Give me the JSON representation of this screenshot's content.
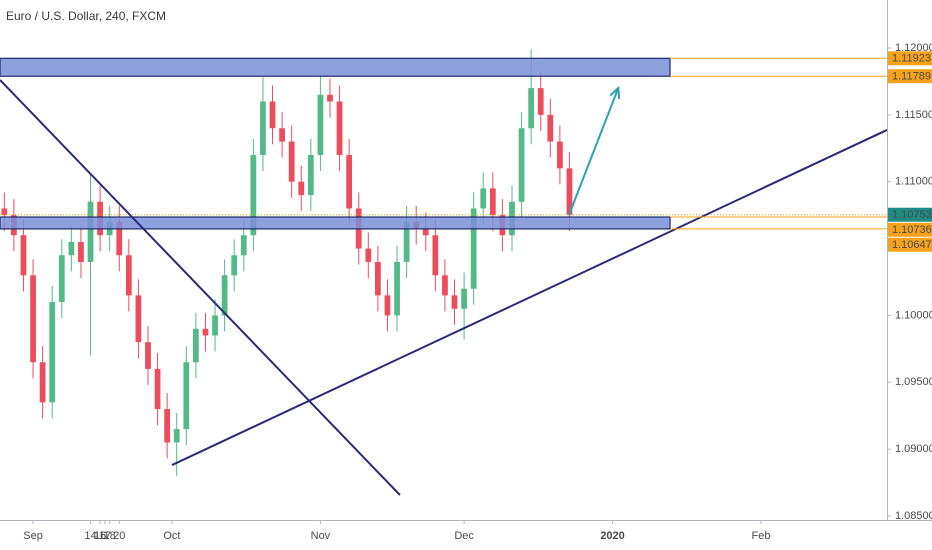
{
  "chart_data": {
    "type": "candlestick",
    "title": "Euro / U.S. Dollar, 240, FXCM",
    "xlim": [
      -4.9,
      180.3
    ],
    "ylim": [
      1.0847,
      1.12359
    ],
    "xticks": [
      {
        "value": 2,
        "label": "Sep"
      },
      16,
      {
        "value": 31,
        "label": "Oct"
      },
      14,
      {
        "value": 62,
        "label": "Nov"
      },
      18,
      {
        "value": 92,
        "label": "Dec"
      },
      16,
      {
        "value": 123,
        "label": "2020",
        "bold": true
      },
      20,
      {
        "value": 154,
        "label": "Feb"
      },
      17
    ],
    "yticks": [
      {
        "value": 1.12,
        "label": "1.12000"
      },
      {
        "value": 1.115,
        "label": "1.11500"
      },
      {
        "value": 1.11,
        "label": "1.11000"
      },
      {
        "value": 1.105,
        "label": "1.10500"
      },
      {
        "value": 1.1,
        "label": "1.10000"
      },
      {
        "value": 1.095,
        "label": "1.09500"
      },
      {
        "value": 1.09,
        "label": "1.09000"
      },
      {
        "value": 1.085,
        "label": "1.08500"
      }
    ],
    "up_color": "#53b987",
    "down_color": "#eb4d5c",
    "x": [
      -4,
      -2,
      0,
      2,
      4,
      6,
      8,
      10,
      12,
      14,
      16,
      18,
      20,
      22,
      24,
      26,
      28,
      30,
      32,
      34,
      36,
      38,
      40,
      42,
      44,
      46,
      48,
      50,
      52,
      54,
      56,
      58,
      60,
      62,
      64,
      66,
      68,
      70,
      72,
      74,
      76,
      78,
      80,
      82,
      84,
      86,
      88,
      90,
      92,
      94,
      96,
      98,
      100,
      102,
      104,
      106,
      108,
      110,
      112,
      114
    ],
    "open": [
      1.108,
      1.1075,
      1.106,
      1.103,
      1.0965,
      1.0935,
      1.101,
      1.1045,
      1.1055,
      1.104,
      1.1085,
      1.106,
      1.107,
      1.1045,
      1.1015,
      1.098,
      1.096,
      1.093,
      1.0905,
      1.0915,
      1.0965,
      1.099,
      1.0985,
      1.1,
      1.103,
      1.1045,
      1.106,
      1.112,
      1.116,
      1.114,
      1.113,
      1.11,
      1.109,
      1.112,
      1.1165,
      1.116,
      1.112,
      1.108,
      1.105,
      1.104,
      1.1015,
      1.1,
      1.104,
      1.107,
      1.1065,
      1.106,
      1.103,
      1.1015,
      1.1005,
      1.102,
      1.108,
      1.1095,
      1.1075,
      1.106,
      1.1085,
      1.114,
      1.117,
      1.115,
      1.113,
      1.111
    ],
    "high": [
      1.1092,
      1.1087,
      1.1072,
      1.1042,
      1.0977,
      1.1022,
      1.1057,
      1.1067,
      1.1067,
      1.1105,
      1.1097,
      1.1082,
      1.1082,
      1.1057,
      1.1027,
      1.0992,
      1.0972,
      1.0942,
      1.0927,
      1.0977,
      1.1002,
      1.1002,
      1.1012,
      1.1042,
      1.1057,
      1.1072,
      1.1132,
      1.1178,
      1.1172,
      1.1152,
      1.1142,
      1.1112,
      1.1132,
      1.1179,
      1.1177,
      1.1172,
      1.1132,
      1.1092,
      1.1062,
      1.1052,
      1.1027,
      1.1052,
      1.1082,
      1.1082,
      1.1077,
      1.1072,
      1.1042,
      1.1027,
      1.1032,
      1.1092,
      1.1107,
      1.1107,
      1.1087,
      1.1097,
      1.1152,
      1.1199,
      1.1182,
      1.1162,
      1.1142,
      1.1122
    ],
    "low": [
      1.1063,
      1.1048,
      1.1018,
      1.0953,
      1.0923,
      1.0923,
      1.0998,
      1.1033,
      1.1028,
      1.097,
      1.1048,
      1.1048,
      1.1033,
      1.1003,
      1.0968,
      1.0948,
      1.0918,
      1.0893,
      1.088,
      1.0903,
      1.0953,
      1.0973,
      1.0973,
      1.0988,
      1.1018,
      1.1033,
      1.1048,
      1.1108,
      1.1128,
      1.1118,
      1.1088,
      1.1078,
      1.1078,
      1.1108,
      1.1148,
      1.1108,
      1.1068,
      1.1038,
      1.1028,
      1.1003,
      1.0988,
      1.0988,
      1.1028,
      1.1053,
      1.1048,
      1.1018,
      1.1003,
      1.0993,
      1.0982,
      1.1008,
      1.1068,
      1.1063,
      1.1048,
      1.1048,
      1.1073,
      1.1128,
      1.1138,
      1.1118,
      1.1098,
      1.1063
    ],
    "close": [
      1.1075,
      1.106,
      1.103,
      1.0965,
      1.0935,
      1.101,
      1.1045,
      1.1055,
      1.104,
      1.1085,
      1.106,
      1.107,
      1.1045,
      1.1015,
      1.098,
      1.096,
      1.093,
      1.0905,
      1.0915,
      1.0965,
      1.099,
      1.0985,
      1.1,
      1.103,
      1.1045,
      1.106,
      1.112,
      1.116,
      1.114,
      1.113,
      1.11,
      1.109,
      1.112,
      1.1165,
      1.116,
      1.112,
      1.108,
      1.105,
      1.104,
      1.1015,
      1.1,
      1.104,
      1.107,
      1.1065,
      1.106,
      1.103,
      1.1015,
      1.1005,
      1.102,
      1.108,
      1.1095,
      1.1075,
      1.106,
      1.1085,
      1.114,
      1.117,
      1.115,
      1.113,
      1.111,
      1.1075
    ],
    "zones": [
      {
        "top": 1.11923,
        "bottom": 1.11789,
        "x": [
          -4.9,
          135
        ],
        "color": "#7b8fd9"
      },
      {
        "top": 1.10736,
        "bottom": 1.10647,
        "x": [
          -4.9,
          135
        ],
        "color": "#7b8fd9"
      }
    ],
    "trendlines": [
      {
        "x": [
          -4.9,
          78.6
        ],
        "y": [
          1.11761,
          1.08657
        ],
        "color": "#2a2a78"
      },
      {
        "x": [
          31,
          180.3
        ],
        "y": [
          1.08881,
          1.11387
        ],
        "color": "#2a2a78"
      },
      {
        "x": [
          113.9,
          124.2
        ],
        "y": [
          1.10751,
          1.11701
        ],
        "color": "#2ba3b5",
        "arrow": true
      }
    ],
    "price_labels": [
      {
        "value": 1.11923,
        "color": "#f7a21b"
      },
      {
        "value": 1.11789,
        "color": "#f7a21b"
      },
      {
        "value": 1.10753,
        "color": "#1e8c86",
        "current": true
      },
      {
        "value": 1.10736,
        "color": "#f7a21b"
      },
      {
        "value": 1.10647,
        "color": "#f7a21b"
      }
    ]
  }
}
